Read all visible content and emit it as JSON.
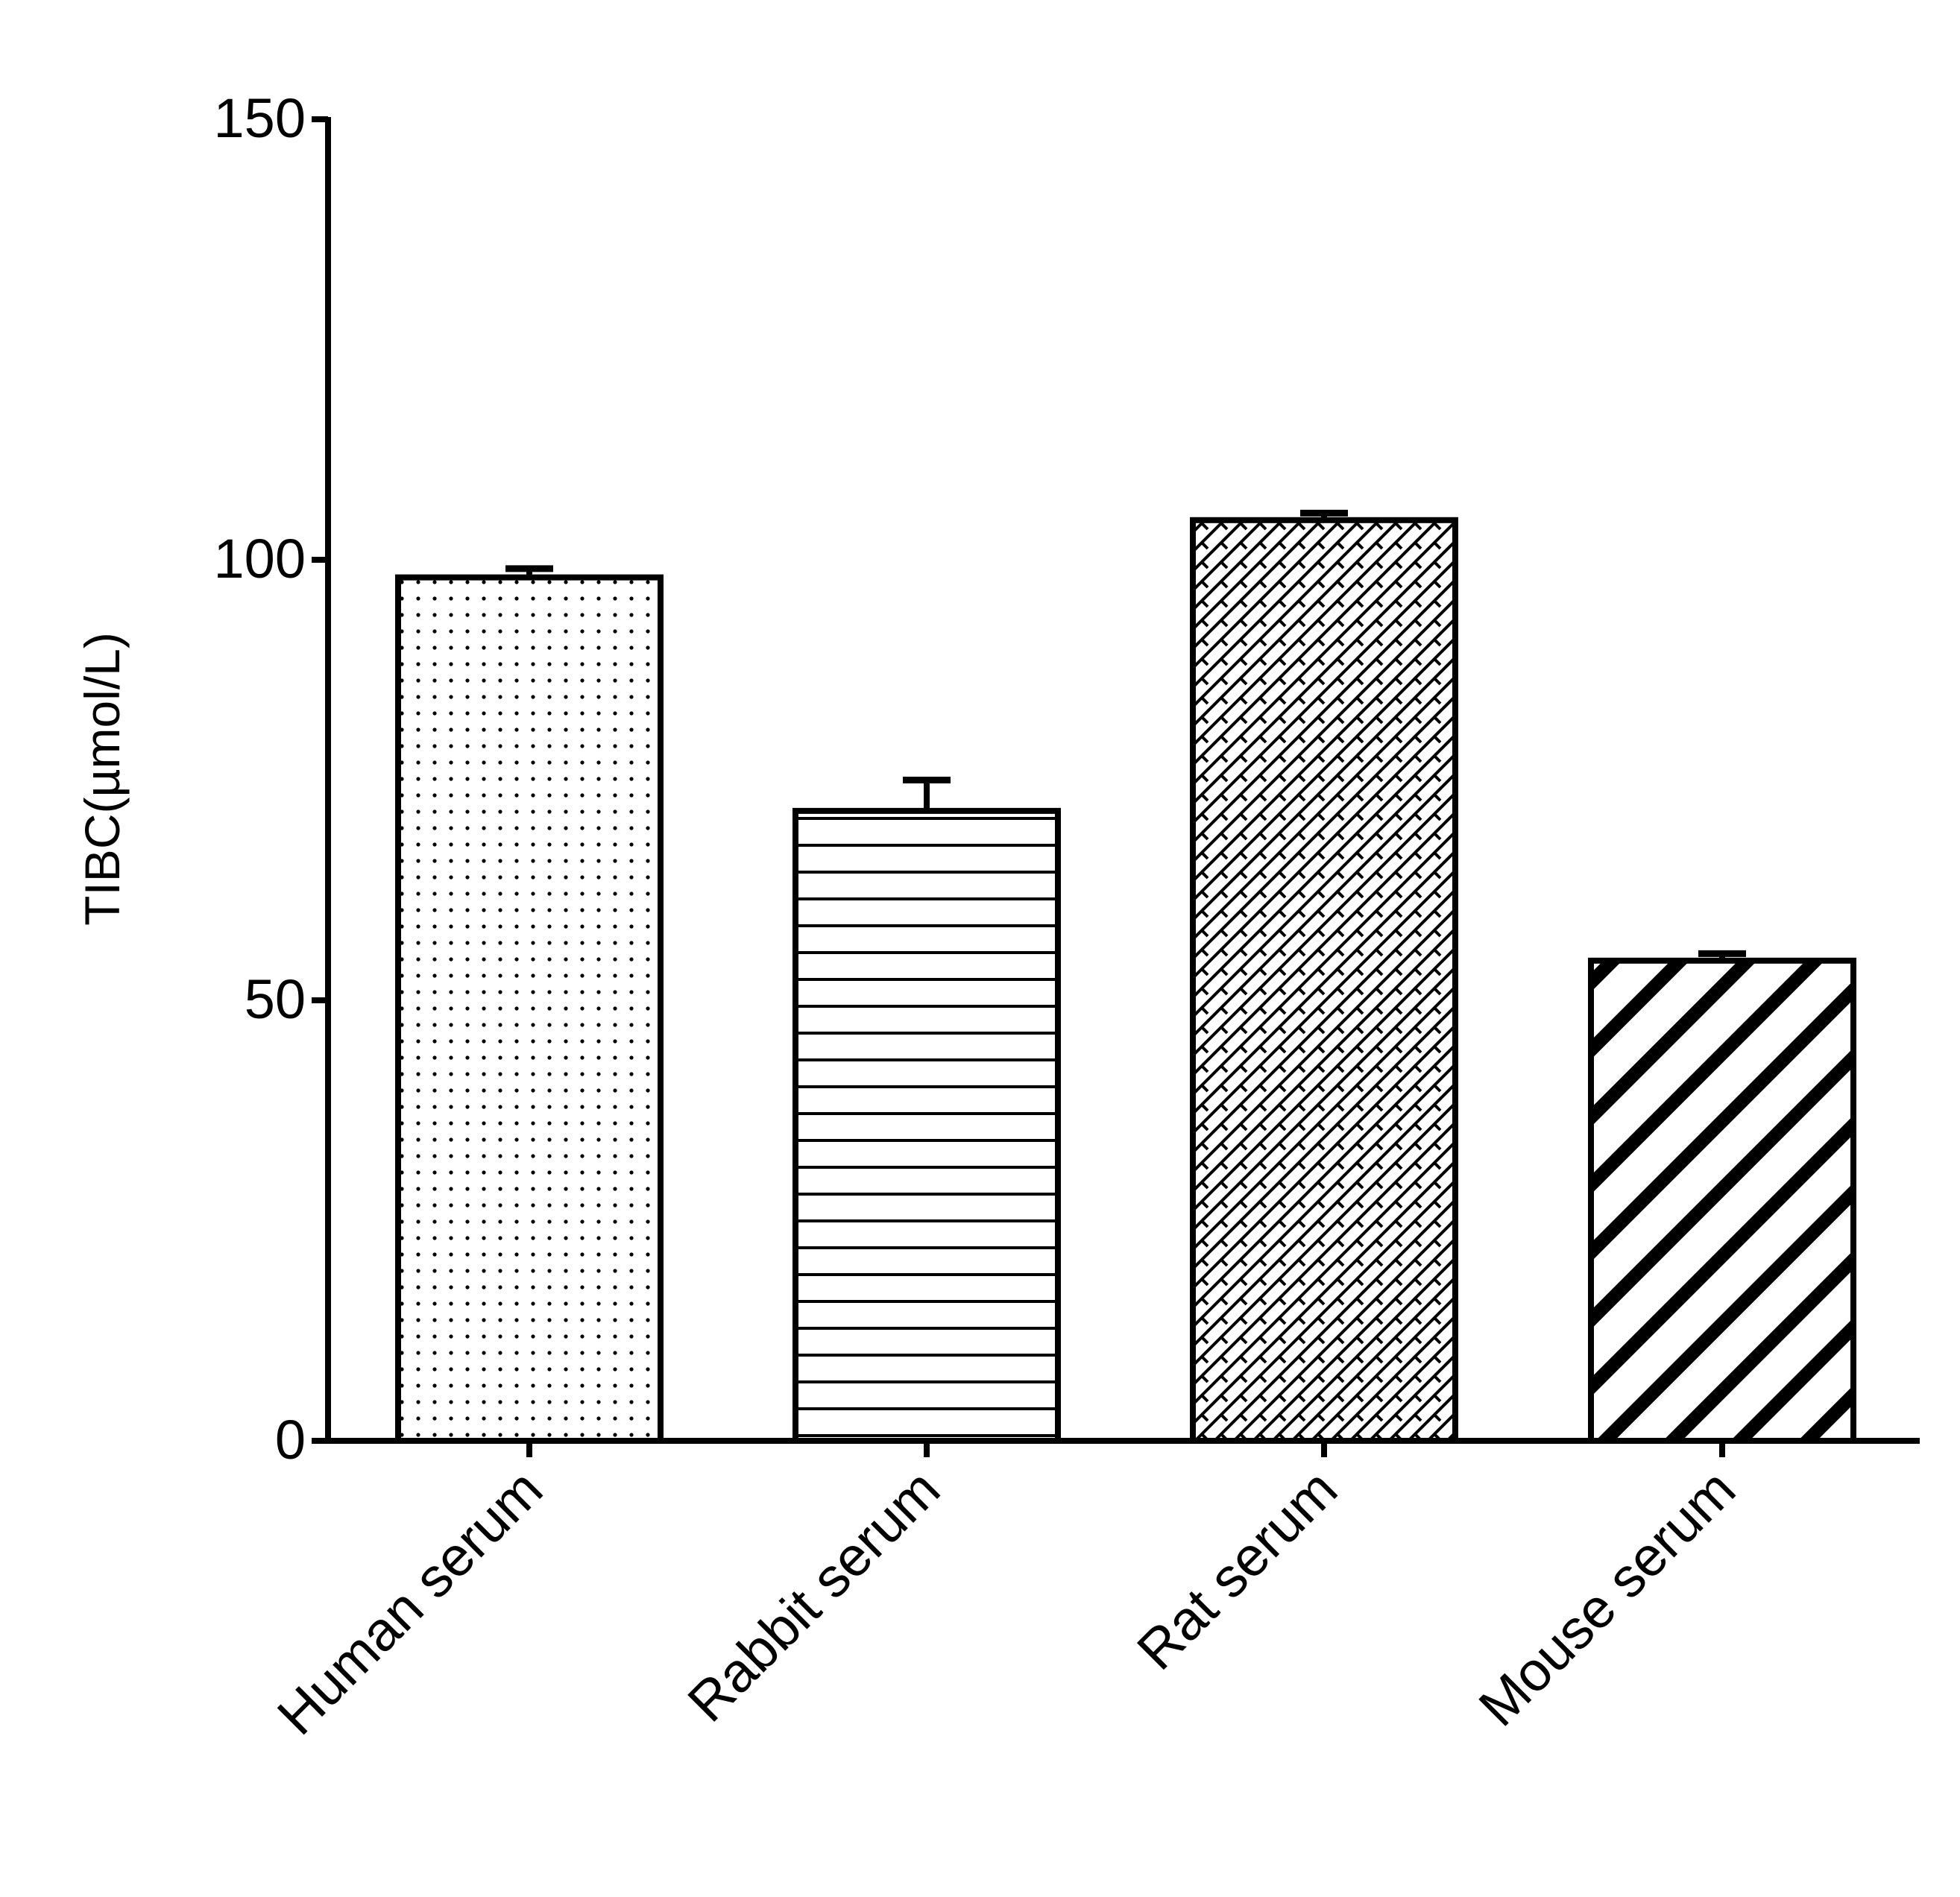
{
  "chart_data": {
    "type": "bar",
    "title": "",
    "xlabel": "",
    "ylabel": "TIBC(µmol/L)",
    "ylim": [
      0,
      150
    ],
    "yticks": [
      0,
      50,
      100,
      150
    ],
    "ytick_labels": [
      "0",
      "50",
      "100",
      "150"
    ],
    "grid": false,
    "legend": "none",
    "categories": [
      "Human serum",
      "Rabbit serum",
      "Rat serum",
      "Mouse serum"
    ],
    "values": [
      98,
      71.5,
      104.5,
      54.5
    ],
    "error_upper": [
      99,
      75,
      105.3,
      55.3
    ],
    "fill_patterns": [
      "dots",
      "horizontal-lines",
      "crosshatch",
      "diagonal-stripes"
    ],
    "colors": {
      "stroke": "#000000",
      "background": "#ffffff"
    }
  }
}
